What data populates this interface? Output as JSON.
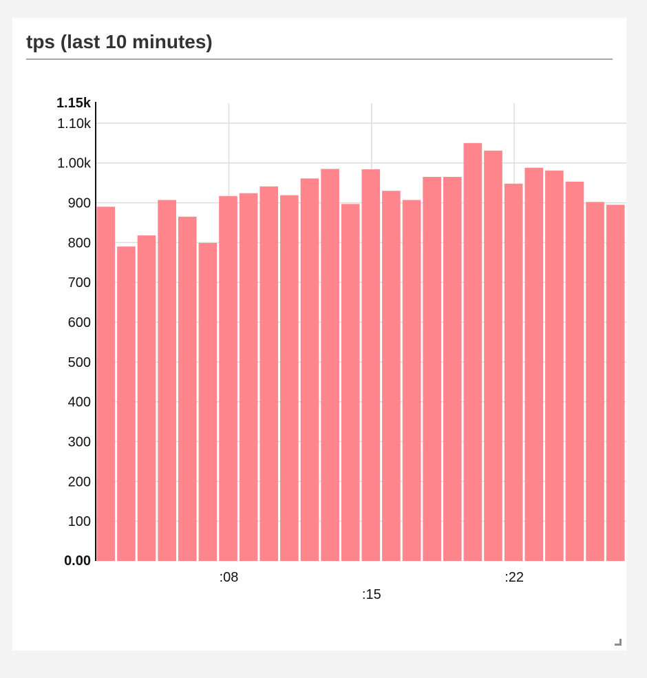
{
  "panel": {
    "title": "tps (last 10 minutes)"
  },
  "colors": {
    "bar": "#ff8086",
    "grid": "#dddddd",
    "axis": "#111111",
    "title": "#333333"
  },
  "icons": {
    "resize": "resize-corner-icon"
  },
  "chart_data": {
    "type": "bar",
    "title": "tps (last 10 minutes)",
    "xlabel": "",
    "ylabel": "",
    "ylim": [
      0,
      1150
    ],
    "y_top_label": "1.15k",
    "y_bottom_label": "0.00",
    "y_ticks": [
      {
        "value": 100,
        "label": "100"
      },
      {
        "value": 200,
        "label": "200"
      },
      {
        "value": 300,
        "label": "300"
      },
      {
        "value": 400,
        "label": "400"
      },
      {
        "value": 500,
        "label": "500"
      },
      {
        "value": 600,
        "label": "600"
      },
      {
        "value": 700,
        "label": "700"
      },
      {
        "value": 800,
        "label": "800"
      },
      {
        "value": 900,
        "label": "900"
      },
      {
        "value": 1000,
        "label": "1.00k"
      },
      {
        "value": 1100,
        "label": "1.10k"
      }
    ],
    "x_ticks": [
      {
        "index": 6.5,
        "label": ":08",
        "row": 0
      },
      {
        "index": 13.5,
        "label": ":15",
        "row": 1
      },
      {
        "index": 20.5,
        "label": ":22",
        "row": 0
      }
    ],
    "grid": true,
    "legend": "none",
    "values": [
      890,
      790,
      818,
      907,
      865,
      799,
      917,
      924,
      941,
      919,
      961,
      985,
      897,
      984,
      930,
      907,
      965,
      965,
      1050,
      1031,
      948,
      988,
      981,
      953,
      902,
      895
    ]
  }
}
